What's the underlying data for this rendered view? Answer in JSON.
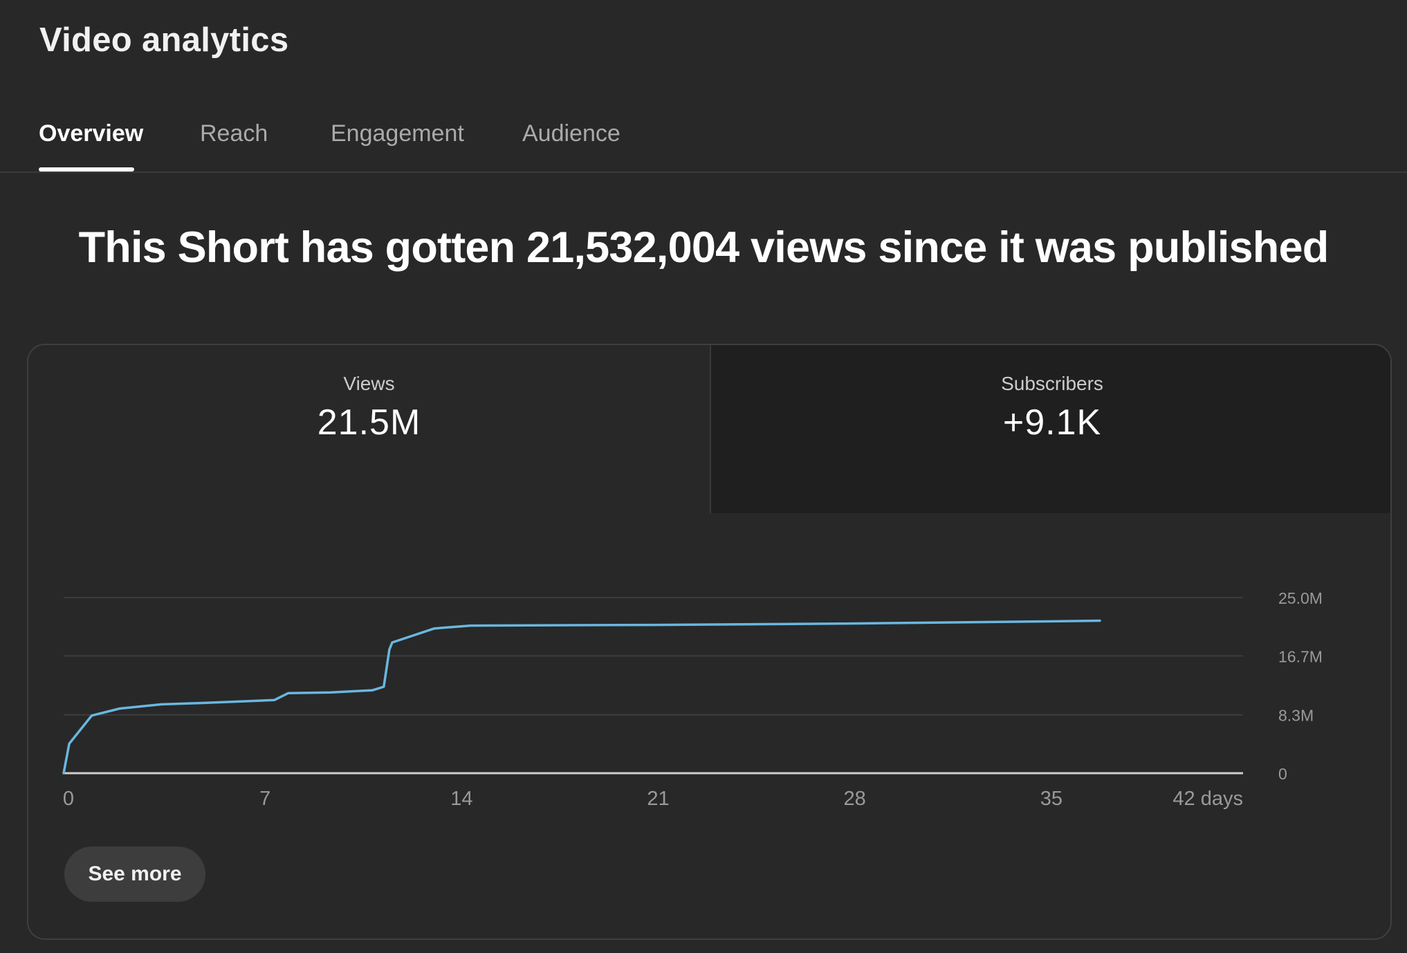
{
  "header": {
    "title": "Video analytics"
  },
  "tabs": [
    {
      "label": "Overview",
      "active": true
    },
    {
      "label": "Reach",
      "active": false
    },
    {
      "label": "Engagement",
      "active": false
    },
    {
      "label": "Audience",
      "active": false
    }
  ],
  "headline": "This Short has gotten 21,532,004 views since it was published",
  "metrics": {
    "views": {
      "label": "Views",
      "value": "21.5M"
    },
    "subscribers": {
      "label": "Subscribers",
      "value": "+9.1K"
    }
  },
  "colors": {
    "line": "#6ab7e0",
    "grid": "#3d3d3d",
    "axis": "#cfcfcf",
    "tick_text": "#9a9a9a"
  },
  "chart_data": {
    "type": "line",
    "title": "",
    "xlabel": "",
    "ylabel": "",
    "xlim": [
      0,
      42
    ],
    "ylim": [
      0,
      25.0
    ],
    "x_ticks": [
      {
        "value": 0,
        "label": "0"
      },
      {
        "value": 7,
        "label": "7"
      },
      {
        "value": 14,
        "label": "14"
      },
      {
        "value": 21,
        "label": "21"
      },
      {
        "value": 28,
        "label": "28"
      },
      {
        "value": 35,
        "label": "35"
      },
      {
        "value": 42,
        "label": "42 days"
      }
    ],
    "y_ticks": [
      {
        "value": 0,
        "label": "0"
      },
      {
        "value": 8.3,
        "label": "8.3M"
      },
      {
        "value": 16.7,
        "label": "16.7M"
      },
      {
        "value": 25.0,
        "label": "25.0M"
      }
    ],
    "series": [
      {
        "name": "Views",
        "unit": "M",
        "x": [
          0,
          0.2,
          1.0,
          2.0,
          3.5,
          5.0,
          7.5,
          8.0,
          9.5,
          11.0,
          11.4,
          11.6,
          11.7,
          13.2,
          14.5,
          21.0,
          28.0,
          35.0,
          36.9
        ],
        "y": [
          0,
          4.2,
          8.2,
          9.2,
          9.8,
          10.0,
          10.4,
          11.4,
          11.5,
          11.8,
          12.3,
          17.6,
          18.6,
          20.6,
          21.0,
          21.1,
          21.3,
          21.6,
          21.7
        ]
      }
    ]
  },
  "actions": {
    "see_more": "See more"
  }
}
